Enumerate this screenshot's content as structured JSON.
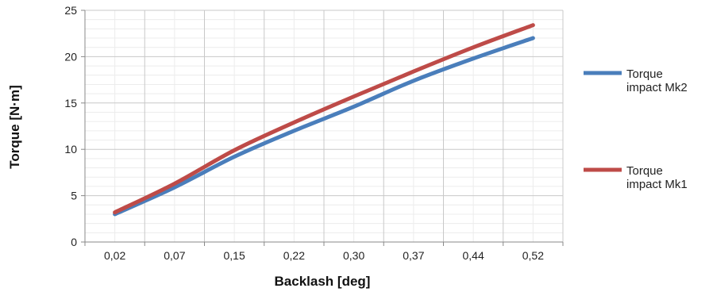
{
  "chart_data": {
    "type": "line",
    "categories": [
      "0,02",
      "0,07",
      "0,15",
      "0,22",
      "0,30",
      "0,37",
      "0,44",
      "0,52"
    ],
    "xlabel": "Backlash [deg]",
    "ylabel": "Torque [N·m]",
    "ylim": [
      0,
      25
    ],
    "yticks": [
      0,
      5,
      10,
      15,
      20,
      25
    ],
    "grid": true,
    "minor_grid": true,
    "legend_position": "right",
    "series": [
      {
        "name_lines": [
          "Torque",
          "impact Mk2"
        ],
        "color": "#4a7ebb",
        "values": [
          3.0,
          5.9,
          9.2,
          12.0,
          14.6,
          17.4,
          19.8,
          22.0
        ]
      },
      {
        "name_lines": [
          "Torque",
          "impact Mk1"
        ],
        "color": "#be4b48",
        "values": [
          3.2,
          6.3,
          9.9,
          12.9,
          15.7,
          18.4,
          21.0,
          23.4
        ]
      }
    ]
  }
}
